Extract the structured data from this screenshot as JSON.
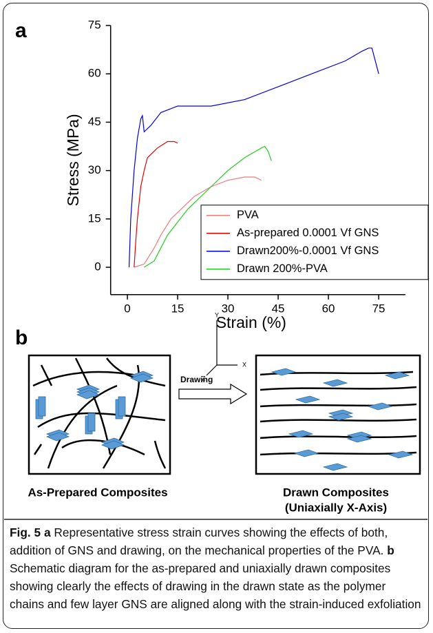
{
  "panel_labels": [
    "a",
    "b"
  ],
  "chart_data": {
    "type": "line",
    "xlabel": "Strain (%)",
    "ylabel": "Stress (MPa)",
    "xlim": [
      -5,
      83
    ],
    "ylim": [
      -8.5,
      75
    ],
    "xticks": [
      0,
      15,
      30,
      45,
      60,
      75
    ],
    "yticks": [
      0,
      15,
      30,
      45,
      60,
      75
    ],
    "legend": "lower right",
    "series": [
      {
        "name": "PVA",
        "color": "#f07a7a",
        "x": [
          2,
          5,
          8,
          10,
          13,
          15,
          18,
          20,
          25,
          30,
          35,
          38,
          40
        ],
        "values": [
          0,
          1,
          6,
          10,
          15,
          17,
          20,
          22,
          25,
          27,
          28,
          28,
          27
        ]
      },
      {
        "name": "As-prepared 0.0001 Vf GNS",
        "color": "#e00000",
        "x": [
          2,
          2.5,
          3,
          4,
          5,
          6,
          7,
          9,
          12,
          14,
          15
        ],
        "values": [
          0,
          8,
          15,
          25,
          30,
          34,
          35,
          37,
          39,
          39,
          38.5
        ]
      },
      {
        "name": "Drawn200%-0.0001 Vf GNS",
        "color": "#0000dd",
        "x": [
          0.5,
          1,
          2,
          3,
          4,
          4.5,
          5,
          7,
          10,
          15,
          25,
          35,
          45,
          55,
          65,
          70,
          72,
          73,
          75
        ],
        "values": [
          0,
          15,
          30,
          40,
          46,
          47,
          42,
          44,
          48,
          50,
          50,
          52,
          56,
          60,
          64,
          67,
          68,
          68,
          60
        ]
      },
      {
        "name": "Drawn 200%-PVA",
        "color": "#22cc22",
        "x": [
          5,
          8,
          12,
          18,
          25,
          30,
          35,
          40,
          41,
          42,
          43
        ],
        "values": [
          0,
          2,
          10,
          18,
          25,
          30,
          34,
          37,
          37.5,
          36,
          33
        ]
      }
    ]
  },
  "diagram": {
    "axis_y": "Y",
    "axis_x": "X",
    "axis_z": "Z",
    "arrow_label": "Drawing",
    "left_caption": "As-Prepared Composites",
    "right_caption_1": "Drawn Composites",
    "right_caption_2": "(Uniaxially X-Axis)"
  },
  "caption": {
    "label": "Fig. 5",
    "a_label": "a",
    "a_text": "Representative stress strain curves showing the effects of both, addition of GNS and drawing, on the mechanical properties of the PVA.",
    "b_label": "b",
    "b_text": "Schematic diagram for the as-prepared and uniaxially drawn composites showing clearly the effects of drawing in the drawn state as the polymer chains and few layer GNS are aligned along with the strain-induced exfoliation"
  }
}
